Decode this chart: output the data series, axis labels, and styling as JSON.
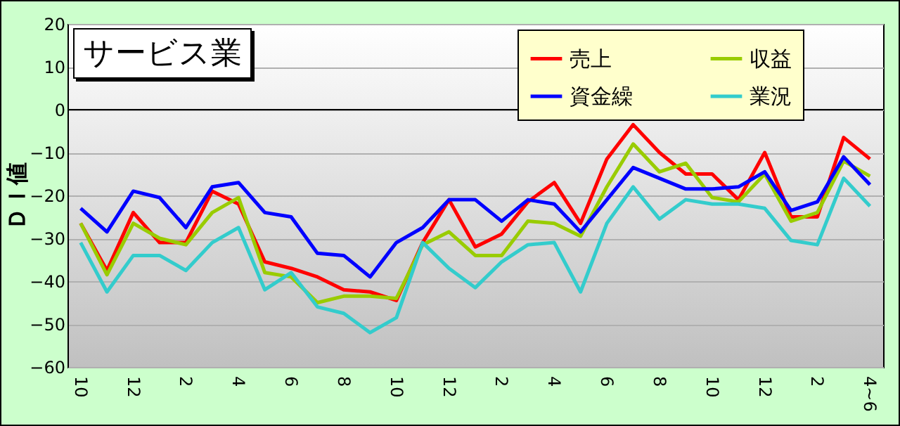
{
  "chart_data": {
    "type": "line",
    "title": "サービス業",
    "ylabel": "ＤＩ値",
    "categories": [
      "10",
      null,
      "12",
      null,
      "2",
      null,
      "4",
      null,
      "6",
      null,
      "8",
      null,
      "10",
      null,
      "12",
      null,
      "2",
      null,
      "4",
      null,
      "6",
      null,
      "8",
      null,
      "10",
      null,
      "12",
      null,
      "2",
      null,
      "4~6"
    ],
    "series": [
      {
        "name": "売上",
        "color": "#ff0000",
        "values": [
          -26.5,
          -37.5,
          -24,
          -31,
          -31,
          -19,
          -22,
          -35.5,
          -37,
          -39,
          -42,
          -42.5,
          -44.5,
          -31,
          -21,
          -32,
          -29,
          -21.5,
          -17,
          -26.5,
          -11.5,
          -3.5,
          -10,
          -15,
          -15,
          -21,
          -10,
          -25,
          -25,
          -6.5,
          -11.5
        ]
      },
      {
        "name": "収益",
        "color": "#99cc00",
        "values": [
          -26.5,
          -38.5,
          -26.5,
          -30,
          -31.5,
          -24,
          -20.5,
          -38,
          -39,
          -45,
          -43.5,
          -43.5,
          -44,
          -31.5,
          -28.5,
          -34,
          -34,
          -26,
          -26.5,
          -29.5,
          -18,
          -8,
          -14.5,
          -12.5,
          -20.5,
          -21.5,
          -15,
          -26,
          -24,
          -12,
          -15.5
        ]
      },
      {
        "name": "資金繰",
        "color": "#0000ff",
        "values": [
          -23,
          -28.5,
          -19,
          -20.5,
          -27.5,
          -18,
          -17,
          -24,
          -25,
          -33.5,
          -34,
          -39,
          -31,
          -27.5,
          -21,
          -21,
          -26,
          -21,
          -22,
          -28.5,
          -21,
          -13.5,
          -16,
          -18.5,
          -18.5,
          -18,
          -14.5,
          -23.5,
          -21.5,
          -11,
          -17.5
        ]
      },
      {
        "name": "業況",
        "color": "#33cccc",
        "values": [
          -31,
          -42.5,
          -34,
          -34,
          -37.5,
          -31,
          -27.5,
          -42,
          -38,
          -46,
          -47.5,
          -52,
          -48.5,
          -31,
          -37,
          -41.5,
          -35.5,
          -31.5,
          -31,
          -42.5,
          -26.5,
          -18,
          -25.5,
          -21,
          -22,
          -22,
          -23,
          -30.5,
          -31.5,
          -16,
          -22.5
        ]
      }
    ],
    "ylim": [
      -60,
      20
    ],
    "yticks": [
      -60,
      -50,
      -40,
      -30,
      -20,
      -10,
      0,
      10,
      20
    ],
    "grid": "y",
    "legend": "top right",
    "marker": "none",
    "line_style": "solid"
  }
}
